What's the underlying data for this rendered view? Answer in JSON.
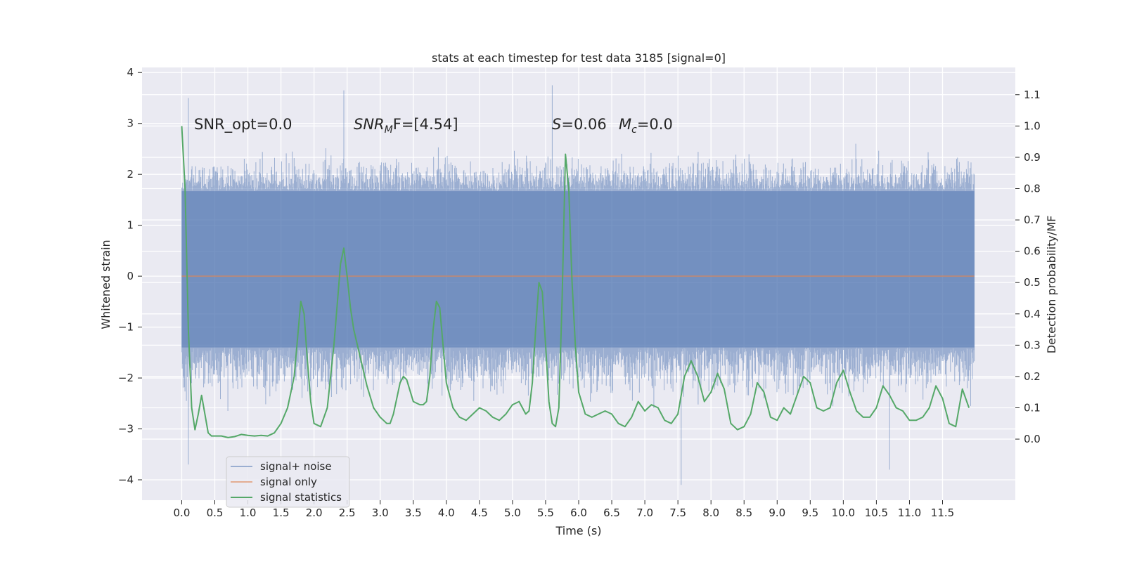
{
  "chart_data": {
    "type": "line",
    "title": "stats at each timestep for test data 3185 [signal=0]",
    "xlabel": "Time (s)",
    "ylabel_left": "Whitened strain",
    "ylabel_right": "Detection probability/MF",
    "xlim": [
      -0.6,
      12.6
    ],
    "ylim_left": [
      -4.4,
      4.1
    ],
    "ylim_right": [
      -0.195,
      1.187
    ],
    "x_ticks": [
      0.0,
      0.5,
      1.0,
      1.5,
      2.0,
      2.5,
      3.0,
      3.5,
      4.0,
      4.5,
      5.0,
      5.5,
      6.0,
      6.5,
      7.0,
      7.5,
      8.0,
      8.5,
      9.0,
      9.5,
      10.0,
      10.5,
      11.0,
      11.5
    ],
    "x_tick_labels": [
      "0.0",
      "0.5",
      "1.0",
      "1.5",
      "2.0",
      "2.5",
      "3.0",
      "3.5",
      "4.0",
      "4.5",
      "5.0",
      "5.5",
      "6.0",
      "6.5",
      "7.0",
      "7.5",
      "8.0",
      "8.5",
      "9.0",
      "9.5",
      "10.0",
      "10.5",
      "11.0",
      "11.5"
    ],
    "y_left_ticks": [
      4,
      3,
      2,
      1,
      0,
      -1,
      -2,
      -3,
      -4
    ],
    "y_left_tick_labels": [
      "4",
      "3",
      "2",
      "1",
      "0",
      "−1",
      "−2",
      "−3",
      "−4"
    ],
    "y_right_ticks": [
      1.1,
      1.0,
      0.9,
      0.8,
      0.7,
      0.6,
      0.5,
      0.4,
      0.3,
      0.2,
      0.1,
      0.0
    ],
    "y_right_tick_labels": [
      "1.1",
      "1.0",
      "0.9",
      "0.8",
      "0.7",
      "0.6",
      "0.5",
      "0.4",
      "0.3",
      "0.2",
      "0.1",
      "0.0"
    ],
    "annotations": {
      "snr_opt": "SNR_opt=0.0",
      "snr_mf_prefix": "SNR",
      "snr_mf_sub": "M",
      "snr_mf_suffix": "F=[4.54]",
      "s_var": "S",
      "s_value": "=0.06",
      "mc_var": "M",
      "mc_sub": "c",
      "mc_value": "=0.0"
    },
    "legend": {
      "position": "lower-left",
      "entries": [
        "signal+ noise",
        "signal only",
        "signal statistics"
      ]
    },
    "series": [
      {
        "name": "signal+ noise",
        "axis": "left",
        "color": "#4c72b0",
        "style": "dense noise band",
        "t_start": 0.0,
        "t_end": 11.98,
        "core_range": [
          -1.4,
          1.67
        ],
        "peak_range": [
          -4.1,
          3.75
        ],
        "labelled_extremes": [
          {
            "x": 0.1,
            "y": 3.5
          },
          {
            "x": 0.1,
            "y": -3.7
          },
          {
            "x": 2.45,
            "y": 3.65
          },
          {
            "x": 5.6,
            "y": 3.75
          },
          {
            "x": 7.55,
            "y": -4.1
          },
          {
            "x": 10.7,
            "y": -3.8
          }
        ]
      },
      {
        "name": "signal only",
        "axis": "left",
        "color": "#dd8452",
        "x": [
          0.0,
          11.98
        ],
        "values": [
          0.0,
          0.0
        ]
      },
      {
        "name": "signal statistics",
        "axis": "right",
        "color": "#55a868",
        "x": [
          0.0,
          0.05,
          0.1,
          0.15,
          0.2,
          0.25,
          0.3,
          0.35,
          0.4,
          0.45,
          0.5,
          0.6,
          0.7,
          0.8,
          0.9,
          1.0,
          1.1,
          1.2,
          1.3,
          1.4,
          1.5,
          1.6,
          1.7,
          1.8,
          1.85,
          1.9,
          1.95,
          2.0,
          2.1,
          2.2,
          2.3,
          2.4,
          2.45,
          2.5,
          2.55,
          2.6,
          2.7,
          2.8,
          2.9,
          3.0,
          3.05,
          3.1,
          3.15,
          3.2,
          3.25,
          3.3,
          3.35,
          3.4,
          3.5,
          3.6,
          3.65,
          3.7,
          3.75,
          3.8,
          3.85,
          3.9,
          3.95,
          4.0,
          4.1,
          4.2,
          4.3,
          4.4,
          4.5,
          4.6,
          4.7,
          4.8,
          4.9,
          5.0,
          5.1,
          5.15,
          5.2,
          5.25,
          5.3,
          5.35,
          5.4,
          5.45,
          5.5,
          5.55,
          5.6,
          5.65,
          5.7,
          5.75,
          5.8,
          5.85,
          5.9,
          5.95,
          6.0,
          6.1,
          6.2,
          6.3,
          6.4,
          6.5,
          6.6,
          6.7,
          6.8,
          6.9,
          7.0,
          7.1,
          7.2,
          7.3,
          7.4,
          7.5,
          7.6,
          7.7,
          7.8,
          7.9,
          8.0,
          8.1,
          8.2,
          8.3,
          8.4,
          8.5,
          8.6,
          8.7,
          8.8,
          8.9,
          9.0,
          9.1,
          9.2,
          9.3,
          9.4,
          9.5,
          9.6,
          9.7,
          9.8,
          9.9,
          10.0,
          10.1,
          10.2,
          10.3,
          10.4,
          10.5,
          10.6,
          10.7,
          10.8,
          10.9,
          11.0,
          11.1,
          11.2,
          11.3,
          11.4,
          11.5,
          11.6,
          11.7,
          11.8,
          11.9
        ],
        "values": [
          1.0,
          0.8,
          0.35,
          0.1,
          0.03,
          0.08,
          0.14,
          0.08,
          0.02,
          0.01,
          0.01,
          0.01,
          0.005,
          0.008,
          0.015,
          0.012,
          0.01,
          0.012,
          0.01,
          0.02,
          0.05,
          0.1,
          0.2,
          0.44,
          0.4,
          0.25,
          0.12,
          0.05,
          0.04,
          0.1,
          0.3,
          0.56,
          0.61,
          0.52,
          0.42,
          0.35,
          0.26,
          0.17,
          0.1,
          0.07,
          0.06,
          0.05,
          0.05,
          0.08,
          0.13,
          0.18,
          0.2,
          0.19,
          0.12,
          0.11,
          0.11,
          0.12,
          0.2,
          0.35,
          0.44,
          0.42,
          0.3,
          0.18,
          0.1,
          0.07,
          0.06,
          0.08,
          0.1,
          0.09,
          0.07,
          0.06,
          0.08,
          0.11,
          0.12,
          0.1,
          0.08,
          0.09,
          0.18,
          0.35,
          0.5,
          0.47,
          0.3,
          0.12,
          0.05,
          0.04,
          0.1,
          0.45,
          0.91,
          0.8,
          0.5,
          0.3,
          0.15,
          0.08,
          0.07,
          0.08,
          0.09,
          0.08,
          0.05,
          0.04,
          0.07,
          0.12,
          0.09,
          0.11,
          0.1,
          0.06,
          0.05,
          0.08,
          0.2,
          0.25,
          0.2,
          0.12,
          0.15,
          0.21,
          0.16,
          0.05,
          0.03,
          0.04,
          0.08,
          0.18,
          0.15,
          0.07,
          0.06,
          0.1,
          0.08,
          0.14,
          0.2,
          0.18,
          0.1,
          0.09,
          0.1,
          0.18,
          0.22,
          0.15,
          0.09,
          0.07,
          0.07,
          0.1,
          0.17,
          0.14,
          0.1,
          0.09,
          0.06,
          0.06,
          0.07,
          0.1,
          0.17,
          0.13,
          0.05,
          0.04,
          0.16,
          0.1
        ]
      }
    ]
  }
}
